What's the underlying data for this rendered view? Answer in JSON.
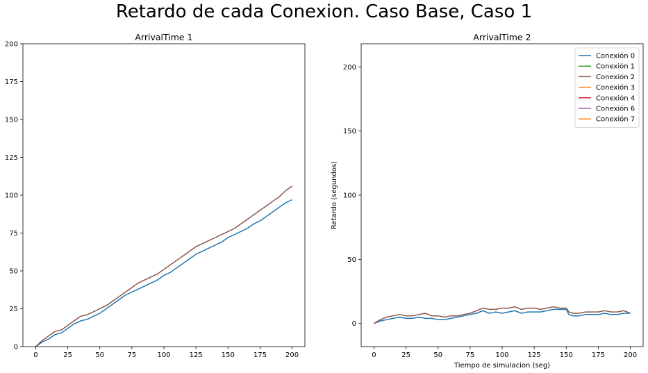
{
  "suptitle": "Retardo de cada Conexion. Caso Base, Caso 1",
  "chart_data": [
    {
      "type": "line",
      "title": "ArrivalTime 1",
      "xlabel": "",
      "ylabel": "",
      "xlim": [
        -10,
        210
      ],
      "ylim": [
        0,
        200
      ],
      "xticks": [
        0,
        25,
        50,
        75,
        100,
        125,
        150,
        175,
        200
      ],
      "yticks": [
        0,
        25,
        50,
        75,
        100,
        125,
        150,
        175,
        200
      ],
      "grid": false,
      "series": [
        {
          "color": "#1f77b4",
          "x": [
            0,
            5,
            10,
            15,
            20,
            25,
            30,
            35,
            40,
            45,
            50,
            55,
            60,
            65,
            70,
            75,
            80,
            85,
            90,
            95,
            100,
            105,
            110,
            115,
            120,
            125,
            130,
            135,
            140,
            145,
            150,
            155,
            160,
            165,
            170,
            175,
            180,
            185,
            190,
            195,
            200
          ],
          "y": [
            0,
            3,
            5,
            8,
            9,
            12,
            15,
            17,
            18,
            20,
            22,
            25,
            28,
            31,
            34,
            36,
            38,
            40,
            42,
            44,
            47,
            49,
            52,
            55,
            58,
            61,
            63,
            65,
            67,
            69,
            72,
            74,
            76,
            78,
            81,
            83,
            86,
            89,
            92,
            95,
            97
          ]
        },
        {
          "color": "#8c564b",
          "x": [
            0,
            5,
            10,
            15,
            20,
            25,
            30,
            35,
            40,
            45,
            50,
            55,
            60,
            65,
            70,
            75,
            80,
            85,
            90,
            95,
            100,
            105,
            110,
            115,
            120,
            125,
            130,
            135,
            140,
            145,
            150,
            155,
            160,
            165,
            170,
            175,
            180,
            185,
            190,
            195,
            200
          ],
          "y": [
            0,
            4,
            7,
            10,
            11,
            14,
            17,
            20,
            21,
            23,
            25,
            27,
            30,
            33,
            36,
            39,
            42,
            44,
            46,
            48,
            51,
            54,
            57,
            60,
            63,
            66,
            68,
            70,
            72,
            74,
            76,
            78,
            81,
            84,
            87,
            90,
            93,
            96,
            99,
            103,
            106
          ]
        }
      ]
    },
    {
      "type": "line",
      "title": "ArrivalTime 2",
      "xlabel": "Tiempo de simulacion (seg)",
      "ylabel": "Retardo (segundos)",
      "xlim": [
        -10,
        210
      ],
      "ylim": [
        -18,
        218
      ],
      "xticks": [
        0,
        25,
        50,
        75,
        100,
        125,
        150,
        175,
        200
      ],
      "yticks": [
        0,
        50,
        100,
        150,
        200
      ],
      "grid": false,
      "legend": "top-right",
      "legend_entries": [
        {
          "name": "Conexión 0",
          "color": "#1f77b4"
        },
        {
          "name": "Conexión 1",
          "color": "#2ca02c"
        },
        {
          "name": "Conexión 2",
          "color": "#8c564b"
        },
        {
          "name": "Conexión 3",
          "color": "#ff7f0e"
        },
        {
          "name": "Conexión 4",
          "color": "#d62728"
        },
        {
          "name": "Conexión 6",
          "color": "#9467bd"
        },
        {
          "name": "Conexión 7",
          "color": "#ff7f0e"
        }
      ],
      "series": [
        {
          "color": "#1f77b4",
          "x": [
            0,
            5,
            10,
            15,
            20,
            25,
            30,
            35,
            40,
            45,
            50,
            55,
            60,
            65,
            70,
            75,
            80,
            85,
            90,
            95,
            100,
            105,
            110,
            115,
            120,
            125,
            130,
            135,
            140,
            145,
            150,
            152,
            155,
            160,
            165,
            170,
            175,
            180,
            185,
            190,
            195,
            200
          ],
          "y": [
            0,
            2,
            3,
            4,
            5,
            4,
            4,
            5,
            4,
            4,
            3,
            3,
            4,
            5,
            6,
            7,
            8,
            10,
            8,
            9,
            8,
            9,
            10,
            8,
            9,
            9,
            9,
            10,
            11,
            11,
            11,
            7,
            6,
            6,
            7,
            7,
            7,
            8,
            7,
            7,
            8,
            8
          ]
        },
        {
          "color": "#8c564b",
          "x": [
            0,
            5,
            10,
            15,
            20,
            25,
            30,
            35,
            40,
            45,
            50,
            55,
            60,
            65,
            70,
            75,
            80,
            85,
            90,
            95,
            100,
            105,
            110,
            115,
            120,
            125,
            130,
            135,
            140,
            145,
            150,
            152,
            155,
            160,
            165,
            170,
            175,
            180,
            185,
            190,
            195,
            200
          ],
          "y": [
            0,
            3,
            5,
            6,
            7,
            6,
            6,
            7,
            8,
            6,
            6,
            5,
            6,
            6,
            7,
            8,
            10,
            12,
            11,
            11,
            12,
            12,
            13,
            11,
            12,
            12,
            11,
            12,
            13,
            12,
            12,
            9,
            8,
            8,
            9,
            9,
            9,
            10,
            9,
            9,
            10,
            8
          ]
        }
      ]
    }
  ]
}
